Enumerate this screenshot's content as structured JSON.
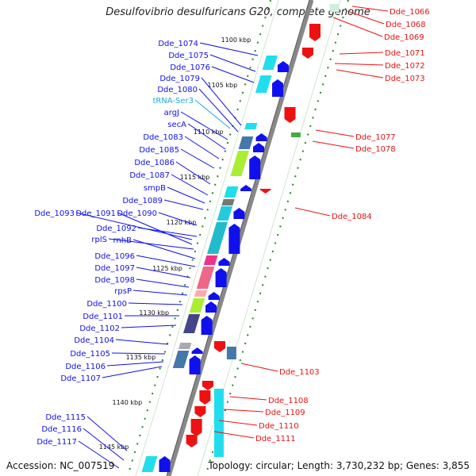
{
  "title": "Desulfovibrio desulfuricans G20, complete genome",
  "accession": "Accession: NC_007519",
  "topology": "Topology: circular; Length: 3,730,232 bp; Genes: 3,855",
  "colors": {
    "minus_gene": "#1010ee",
    "plus_gene": "#ee1111",
    "trna_label": "#22aadd",
    "backbone": "#888888",
    "ticks": "#228822"
  },
  "kbp_ticks": [
    "1100 kbp",
    "1105 kbp",
    "1110 kbp",
    "1115 kbp",
    "1120 kbp",
    "1125 kbp",
    "1130 kbp",
    "1135 kbp",
    "1140 kbp",
    "1145 kbp"
  ],
  "left_labels": [
    {
      "text": "Dde_1074",
      "kind": "gene"
    },
    {
      "text": "Dde_1075",
      "kind": "gene"
    },
    {
      "text": "Dde_1076",
      "kind": "gene"
    },
    {
      "text": "Dde_1079",
      "kind": "gene"
    },
    {
      "text": "Dde_1080",
      "kind": "gene"
    },
    {
      "text": "tRNA-Ser3",
      "kind": "trna"
    },
    {
      "text": "argJ",
      "kind": "gene"
    },
    {
      "text": "secA",
      "kind": "gene"
    },
    {
      "text": "Dde_1083",
      "kind": "gene"
    },
    {
      "text": "Dde_1085",
      "kind": "gene"
    },
    {
      "text": "Dde_1086",
      "kind": "gene"
    },
    {
      "text": "Dde_1087",
      "kind": "gene"
    },
    {
      "text": "smpB",
      "kind": "gene"
    },
    {
      "text": "Dde_1089",
      "kind": "gene"
    },
    {
      "text": "Dde_1093",
      "kind": "gene"
    },
    {
      "text": "Dde_1091",
      "kind": "gene"
    },
    {
      "text": "Dde_1090",
      "kind": "gene"
    },
    {
      "text": "Dde_1092",
      "kind": "gene"
    },
    {
      "text": "rplS",
      "kind": "gene"
    },
    {
      "text": "rnhB",
      "kind": "gene"
    },
    {
      "text": "Dde_1096",
      "kind": "gene"
    },
    {
      "text": "Dde_1097",
      "kind": "gene"
    },
    {
      "text": "Dde_1098",
      "kind": "gene"
    },
    {
      "text": "rpsP",
      "kind": "gene"
    },
    {
      "text": "Dde_1100",
      "kind": "gene"
    },
    {
      "text": "Dde_1101",
      "kind": "gene"
    },
    {
      "text": "Dde_1102",
      "kind": "gene"
    },
    {
      "text": "Dde_1104",
      "kind": "gene"
    },
    {
      "text": "Dde_1105",
      "kind": "gene"
    },
    {
      "text": "Dde_1106",
      "kind": "gene"
    },
    {
      "text": "Dde_1107",
      "kind": "gene"
    },
    {
      "text": "Dde_1115",
      "kind": "gene"
    },
    {
      "text": "Dde_1116",
      "kind": "gene"
    },
    {
      "text": "Dde_1117",
      "kind": "gene"
    }
  ],
  "right_labels": [
    {
      "text": "Dde_1066"
    },
    {
      "text": "Dde_1068"
    },
    {
      "text": "Dde_1069"
    },
    {
      "text": "Dde_1071"
    },
    {
      "text": "Dde_1072"
    },
    {
      "text": "Dde_1073"
    },
    {
      "text": "Dde_1077"
    },
    {
      "text": "Dde_1078"
    },
    {
      "text": "Dde_1084"
    },
    {
      "text": "Dde_1103"
    },
    {
      "text": "Dde_1108"
    },
    {
      "text": "Dde_1109"
    },
    {
      "text": "Dde_1110"
    },
    {
      "text": "Dde_1111"
    }
  ]
}
